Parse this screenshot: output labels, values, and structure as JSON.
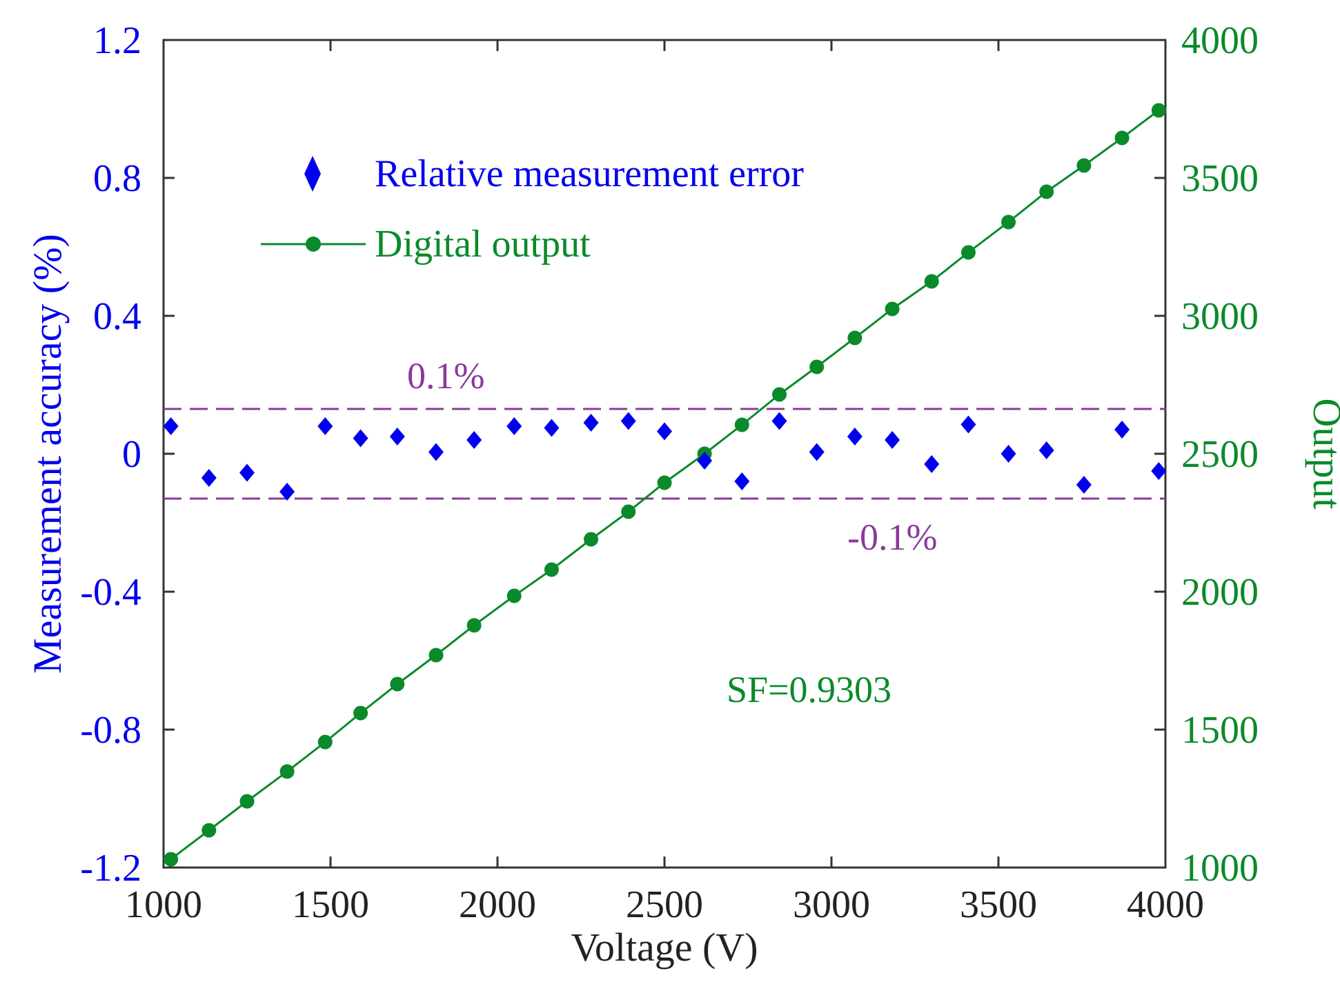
{
  "chart_data": {
    "type": "scatter+line",
    "title": "",
    "xlabel": "Voltage (V)",
    "ylabel_left": "Measurement accuracy (%)",
    "ylabel_right": "Output",
    "xlim": [
      1000,
      4000
    ],
    "ylim_left": [
      -1.2,
      1.2
    ],
    "ylim_right": [
      1000,
      4000
    ],
    "x_ticks": [
      "1000",
      "1500",
      "2000",
      "2500",
      "3000",
      "3500",
      "4000"
    ],
    "y_left_ticks": [
      "1.2",
      "0.8",
      "0.4",
      "0",
      "-0.4",
      "-0.8",
      "-1.2"
    ],
    "y_right_ticks": [
      "4000",
      "3500",
      "3000",
      "2500",
      "2000",
      "1500",
      "1000"
    ],
    "grid": false,
    "legend_position": "top-left",
    "colors": {
      "error": "#0000ee",
      "output": "#0a8a2a",
      "limit": "#8a3a9a",
      "axis": "#333333"
    },
    "series": [
      {
        "name": "Relative measurement error",
        "axis": "left",
        "marker": "diamond",
        "x": [
          1022,
          1136,
          1250,
          1370,
          1484,
          1590,
          1700,
          1816,
          1930,
          2050,
          2162,
          2280,
          2392,
          2500,
          2620,
          2732,
          2844,
          2956,
          3070,
          3182,
          3300,
          3410,
          3530,
          3644,
          3756,
          3870,
          3980
        ],
        "values": [
          0.08,
          -0.07,
          -0.055,
          -0.11,
          0.08,
          0.045,
          0.05,
          0.005,
          0.04,
          0.08,
          0.075,
          0.09,
          0.095,
          0.065,
          -0.02,
          -0.08,
          0.095,
          0.005,
          0.05,
          0.04,
          -0.03,
          0.085,
          0.0,
          0.01,
          -0.09,
          0.07,
          -0.05
        ]
      },
      {
        "name": "Digital output",
        "axis": "right",
        "marker": "circle-line",
        "x": [
          1022,
          1136,
          1250,
          1370,
          1484,
          1590,
          1700,
          1816,
          1930,
          2050,
          2162,
          2280,
          2392,
          2500,
          2620,
          2732,
          2844,
          2956,
          3070,
          3182,
          3300,
          3410,
          3530,
          3644,
          3756,
          3870,
          3980
        ],
        "values": [
          1030,
          1135,
          1240,
          1348,
          1455,
          1560,
          1665,
          1770,
          1878,
          1985,
          2080,
          2190,
          2290,
          2395,
          2500,
          2605,
          2715,
          2815,
          2920,
          3025,
          3125,
          3230,
          3340,
          3450,
          3545,
          3645,
          3745
        ]
      }
    ],
    "reference_lines": [
      {
        "label": "0.1%",
        "axis": "left",
        "y": 0.13
      },
      {
        "label": "-0.1%",
        "axis": "left",
        "y": -0.13
      }
    ],
    "annotations": [
      {
        "text": "SF=0.9303"
      }
    ]
  }
}
